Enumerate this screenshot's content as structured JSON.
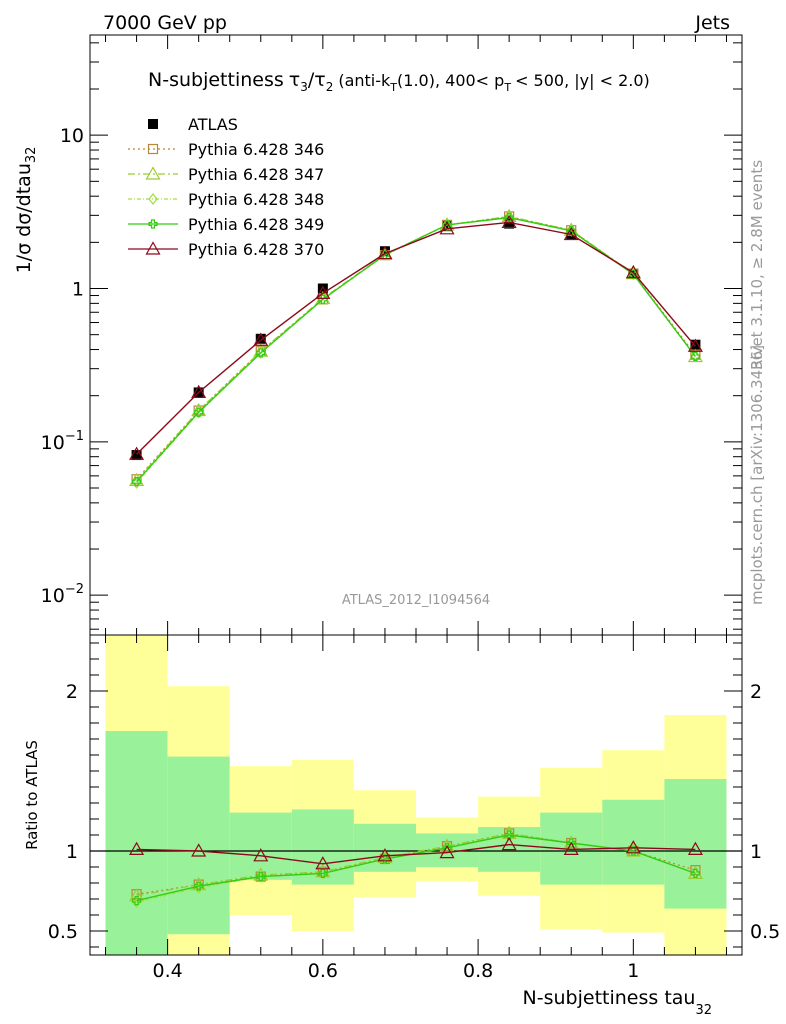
{
  "header": {
    "left": "7000 GeV pp",
    "right": "Jets"
  },
  "title": {
    "main": "N-subjettiness",
    "tau_a": "τ",
    "tau_a_sub": "3",
    "slash": "/",
    "tau_b": "τ",
    "tau_b_sub": "2",
    "cut_1": "(anti-k",
    "cut_1_sub": "T",
    "cut_2": "(1.0), 400< p",
    "cut_2_sub": "T",
    "cut_3": "< 500, |y| < 2.0)"
  },
  "side_labels": {
    "rivet": "Rivet 3.1.10, ≥ 2.8M events",
    "mcplots": "mcplots.cern.ch [arXiv:1306.3436]"
  },
  "analysis_tag": "ATLAS_2012_I1094564",
  "colors": {
    "data": "#000000",
    "p346": "#b8863b",
    "p347": "#9acd32",
    "p348": "#a0e040",
    "p349": "#33cc11",
    "p370": "#8b0a1a",
    "band_inner": "#99f299",
    "band_outer": "#ffff99"
  },
  "chart_data": [
    {
      "type": "scatter",
      "panel": "main",
      "ylabel": "1/σ dσ/dtau",
      "ylabel_sub": "32",
      "yscale": "log",
      "xlim": [
        0.3,
        1.14
      ],
      "ylim": [
        0.0055,
        45
      ],
      "y_ticks": [
        {
          "v": 0.01,
          "base": "10",
          "exp": "−2"
        },
        {
          "v": 0.1,
          "base": "10",
          "exp": "−1"
        },
        {
          "v": 1,
          "base": "1",
          "exp": ""
        },
        {
          "v": 10,
          "base": "10",
          "exp": ""
        }
      ],
      "x": [
        0.36,
        0.44,
        0.52,
        0.6,
        0.68,
        0.76,
        0.84,
        0.92,
        1.0,
        1.08
      ],
      "series": [
        {
          "name": "ATLAS",
          "color_key": "data",
          "marker": "filled-square",
          "style": "none",
          "values": [
            0.082,
            0.21,
            0.47,
            1.0,
            1.75,
            2.55,
            2.65,
            2.25,
            1.25,
            0.43
          ]
        },
        {
          "name": "Pythia 6.428 346",
          "color_key": "p346",
          "marker": "open-square",
          "style": "dotted",
          "values": [
            0.057,
            0.16,
            0.39,
            0.85,
            1.65,
            2.6,
            2.95,
            2.4,
            1.25,
            0.37
          ]
        },
        {
          "name": "Pythia 6.428 347",
          "color_key": "p347",
          "marker": "open-triangle",
          "style": "dashdot",
          "values": [
            0.056,
            0.16,
            0.39,
            0.86,
            1.67,
            2.6,
            2.95,
            2.4,
            1.25,
            0.36
          ]
        },
        {
          "name": "Pythia 6.428 348",
          "color_key": "p348",
          "marker": "open-diamond",
          "style": "dashdot2",
          "values": [
            0.054,
            0.155,
            0.38,
            0.85,
            1.66,
            2.6,
            2.9,
            2.38,
            1.24,
            0.36
          ]
        },
        {
          "name": "Pythia 6.428 349",
          "color_key": "p349",
          "marker": "open-cross",
          "style": "solid",
          "values": [
            0.055,
            0.156,
            0.38,
            0.85,
            1.66,
            2.6,
            2.9,
            2.38,
            1.24,
            0.36
          ]
        },
        {
          "name": "Pythia 6.428 370",
          "color_key": "p370",
          "marker": "open-triangle",
          "style": "solid",
          "values": [
            0.083,
            0.21,
            0.46,
            0.93,
            1.69,
            2.45,
            2.7,
            2.25,
            1.27,
            0.42
          ]
        }
      ]
    },
    {
      "type": "scatter",
      "panel": "ratio",
      "xlabel": "N-subjettiness tau",
      "xlabel_sub": "32",
      "ylabel": "Ratio to ATLAS",
      "xlim": [
        0.3,
        1.14
      ],
      "ylim": [
        0.35,
        2.35
      ],
      "x_ticks": [
        {
          "v": 0.4,
          "label": "0.4"
        },
        {
          "v": 0.6,
          "label": "0.6"
        },
        {
          "v": 0.8,
          "label": "0.8"
        },
        {
          "v": 1.0,
          "label": "1"
        }
      ],
      "y_ticks": [
        {
          "v": 0.5,
          "label": "0.5"
        },
        {
          "v": 1,
          "label": "1"
        },
        {
          "v": 2,
          "label": "2"
        }
      ],
      "bins": [
        {
          "lo": 0.32,
          "hi": 0.4,
          "inner": [
            0.35,
            1.75
          ],
          "outer": [
            0.35,
            2.35
          ]
        },
        {
          "lo": 0.4,
          "hi": 0.48,
          "inner": [
            0.48,
            1.59
          ],
          "outer": [
            0.35,
            2.03
          ]
        },
        {
          "lo": 0.48,
          "hi": 0.56,
          "inner": [
            0.82,
            1.24
          ],
          "outer": [
            0.6,
            1.53
          ]
        },
        {
          "lo": 0.56,
          "hi": 0.64,
          "inner": [
            0.79,
            1.26
          ],
          "outer": [
            0.5,
            1.57
          ]
        },
        {
          "lo": 0.64,
          "hi": 0.72,
          "inner": [
            0.87,
            1.17
          ],
          "outer": [
            0.71,
            1.38
          ]
        },
        {
          "lo": 0.72,
          "hi": 0.8,
          "inner": [
            0.9,
            1.11
          ],
          "outer": [
            0.81,
            1.21
          ]
        },
        {
          "lo": 0.8,
          "hi": 0.88,
          "inner": [
            0.87,
            1.15
          ],
          "outer": [
            0.72,
            1.34
          ]
        },
        {
          "lo": 0.88,
          "hi": 0.96,
          "inner": [
            0.79,
            1.24
          ],
          "outer": [
            0.51,
            1.52
          ]
        },
        {
          "lo": 0.96,
          "hi": 1.04,
          "inner": [
            0.79,
            1.32
          ],
          "outer": [
            0.49,
            1.63
          ]
        },
        {
          "lo": 1.04,
          "hi": 1.12,
          "inner": [
            0.64,
            1.45
          ],
          "outer": [
            0.35,
            1.85
          ]
        }
      ],
      "x": [
        0.36,
        0.44,
        0.52,
        0.6,
        0.68,
        0.76,
        0.84,
        0.92,
        1.0,
        1.08
      ],
      "series": [
        {
          "name": "Pythia 6.428 346",
          "color_key": "p346",
          "marker": "open-square",
          "style": "dotted",
          "values": [
            0.73,
            0.79,
            0.84,
            0.87,
            0.95,
            1.03,
            1.11,
            1.05,
            1.0,
            0.88
          ]
        },
        {
          "name": "Pythia 6.428 347",
          "color_key": "p347",
          "marker": "open-triangle",
          "style": "dashdot",
          "values": [
            0.72,
            0.79,
            0.85,
            0.87,
            0.96,
            1.03,
            1.11,
            1.05,
            1.0,
            0.86
          ]
        },
        {
          "name": "Pythia 6.428 348",
          "color_key": "p348",
          "marker": "open-diamond",
          "style": "dashdot2",
          "values": [
            0.68,
            0.77,
            0.84,
            0.86,
            0.95,
            1.02,
            1.1,
            1.05,
            1.0,
            0.86
          ]
        },
        {
          "name": "Pythia 6.428 349",
          "color_key": "p349",
          "marker": "open-cross",
          "style": "solid",
          "values": [
            0.69,
            0.78,
            0.84,
            0.86,
            0.95,
            1.02,
            1.1,
            1.05,
            1.0,
            0.86
          ]
        },
        {
          "name": "Pythia 6.428 370",
          "color_key": "p370",
          "marker": "open-triangle",
          "style": "solid",
          "values": [
            1.01,
            1.0,
            0.97,
            0.92,
            0.97,
            0.99,
            1.04,
            1.01,
            1.02,
            1.01
          ]
        }
      ]
    }
  ]
}
